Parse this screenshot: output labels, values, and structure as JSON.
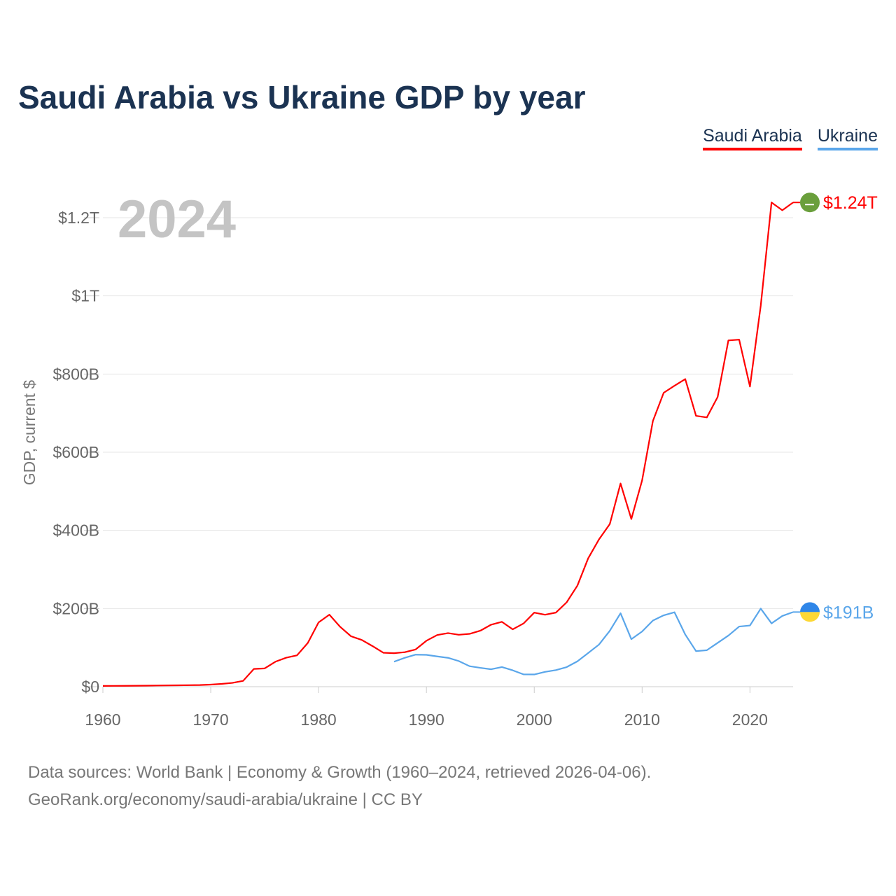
{
  "chart_data": {
    "type": "line",
    "title": "Saudi Arabia vs Ukraine GDP by year",
    "ylabel": "GDP, current $",
    "xlabel": "",
    "year_watermark": "2024",
    "xlim": [
      1960,
      2024
    ],
    "ylim": [
      0,
      1290
    ],
    "yunit": "billion USD",
    "x_ticks": [
      "1960",
      "1970",
      "1980",
      "1990",
      "2000",
      "2010",
      "2020"
    ],
    "y_ticks": [
      {
        "v": 0,
        "label": "$0"
      },
      {
        "v": 200,
        "label": "$200B"
      },
      {
        "v": 400,
        "label": "$400B"
      },
      {
        "v": 600,
        "label": "$600B"
      },
      {
        "v": 800,
        "label": "$800B"
      },
      {
        "v": 1000,
        "label": "$1T"
      },
      {
        "v": 1200,
        "label": "$1.2T"
      }
    ],
    "grid": true,
    "legend_placement": "top-right",
    "series": [
      {
        "name": "Saudi Arabia",
        "color": "#ff0000",
        "end_label": "$1.24T",
        "start": 1960,
        "values": [
          2.0,
          2.1,
          2.3,
          2.5,
          2.7,
          3.0,
          3.3,
          3.6,
          3.9,
          4.2,
          5.4,
          7.2,
          9.7,
          14.9,
          45.4,
          46.8,
          64.0,
          74.2,
          80.3,
          111.9,
          164.5,
          184.3,
          153.2,
          129.2,
          119.6,
          103.9,
          86.9,
          85.7,
          88.3,
          95.3,
          117.6,
          132.2,
          137.1,
          132.9,
          135.2,
          143.3,
          158.7,
          165.9,
          146.8,
          161.7,
          189.5,
          184.1,
          189.6,
          215.8,
          258.7,
          328.5,
          376.9,
          415.9,
          520.0,
          429.0,
          528.0,
          680.0,
          752.0,
          770.0,
          787.0,
          693.0,
          689.0,
          741.0,
          886.0,
          888.0,
          768.0,
          975.0,
          1239.0,
          1219.0,
          1239.0
        ]
      },
      {
        "name": "Ukraine",
        "color": "#5aa6ea",
        "end_label": "$191B",
        "start": 1987,
        "values": [
          64.0,
          74.0,
          82.0,
          81.5,
          77.5,
          73.9,
          65.6,
          52.5,
          48.2,
          44.6,
          50.2,
          41.9,
          31.6,
          31.3,
          38.0,
          42.4,
          50.1,
          64.9,
          86.1,
          107.8,
          143.0,
          188.0,
          121.6,
          141.2,
          169.3,
          182.6,
          190.5,
          133.5,
          91.0,
          93.4,
          112.1,
          130.9,
          153.9,
          156.6,
          199.8,
          162.0,
          181.0,
          191.0
        ]
      }
    ]
  },
  "footer": {
    "line1": "Data sources: World Bank | Economy & Growth (1960–2024, retrieved 2026-04-06).",
    "line2": "GeoRank.org/economy/saudi-arabia/ukraine | CC BY"
  }
}
